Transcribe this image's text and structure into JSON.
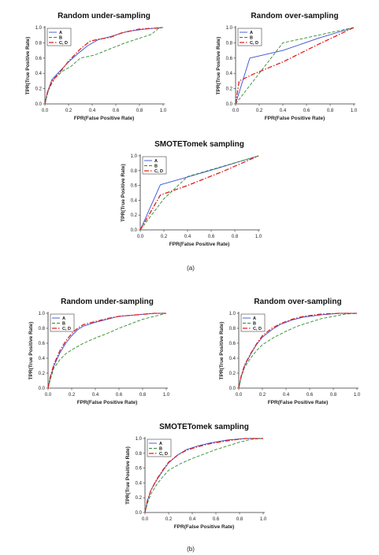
{
  "figure": {
    "panel_labels": [
      "(a)",
      "(b)"
    ]
  },
  "chart_data": [
    {
      "type": "line",
      "panel": "(a)",
      "title": "Random under-sampling",
      "xlabel": "FPR(False Positive Rate)",
      "ylabel": "TPR(True Positive Rate)",
      "xlim": [
        0,
        1
      ],
      "ylim": [
        0,
        1
      ],
      "x_ticks": [
        "0.0",
        "0.2",
        "0.4",
        "0.6",
        "0.8",
        "1.0"
      ],
      "y_ticks": [
        "0.0",
        "0.2",
        "0.4",
        "0.6",
        "0.8",
        "1.0"
      ],
      "grid": false,
      "legend_position": "top-left",
      "series": [
        {
          "name": "A",
          "color": "#3a4fd1",
          "dash": "solid",
          "points": [
            [
              0,
              0
            ],
            [
              0.02,
              0.15
            ],
            [
              0.06,
              0.32
            ],
            [
              0.12,
              0.42
            ],
            [
              0.2,
              0.55
            ],
            [
              0.28,
              0.66
            ],
            [
              0.36,
              0.76
            ],
            [
              0.45,
              0.84
            ],
            [
              0.55,
              0.88
            ],
            [
              0.7,
              0.95
            ],
            [
              0.85,
              0.98
            ],
            [
              1,
              1
            ]
          ]
        },
        {
          "name": "B",
          "color": "#2e8b2e",
          "dash": "dash",
          "points": [
            [
              0,
              0
            ],
            [
              0.03,
              0.18
            ],
            [
              0.08,
              0.33
            ],
            [
              0.15,
              0.43
            ],
            [
              0.22,
              0.49
            ],
            [
              0.3,
              0.6
            ],
            [
              0.42,
              0.64
            ],
            [
              0.55,
              0.72
            ],
            [
              0.68,
              0.8
            ],
            [
              0.8,
              0.86
            ],
            [
              0.9,
              0.91
            ],
            [
              0.97,
              1
            ],
            [
              1,
              1
            ]
          ]
        },
        {
          "name": "C, D",
          "color": "#e01f1f",
          "dash": "dashdot",
          "points": [
            [
              0,
              0
            ],
            [
              0.02,
              0.14
            ],
            [
              0.06,
              0.3
            ],
            [
              0.12,
              0.4
            ],
            [
              0.2,
              0.56
            ],
            [
              0.3,
              0.72
            ],
            [
              0.38,
              0.82
            ],
            [
              0.46,
              0.85
            ],
            [
              0.55,
              0.87
            ],
            [
              0.65,
              0.93
            ],
            [
              0.8,
              0.98
            ],
            [
              1,
              1
            ]
          ]
        }
      ]
    },
    {
      "type": "line",
      "panel": "(a)",
      "title": "Random over-sampling",
      "xlabel": "FPR(False Positive Rate)",
      "ylabel": "TPR(True Positive Rate)",
      "xlim": [
        0,
        1
      ],
      "ylim": [
        0,
        1
      ],
      "x_ticks": [
        "0.0",
        "0.2",
        "0.4",
        "0.6",
        "0.8",
        "1.0"
      ],
      "y_ticks": [
        "0.0",
        "0.2",
        "0.4",
        "0.6",
        "0.8",
        "1.0"
      ],
      "grid": false,
      "legend_position": "top-left",
      "series": [
        {
          "name": "A",
          "color": "#3a4fd1",
          "dash": "solid",
          "points": [
            [
              0,
              0
            ],
            [
              0.12,
              0.6
            ],
            [
              0.4,
              0.7
            ],
            [
              0.7,
              0.86
            ],
            [
              1,
              1
            ]
          ]
        },
        {
          "name": "B",
          "color": "#2e8b2e",
          "dash": "dash",
          "points": [
            [
              0,
              0
            ],
            [
              0.2,
              0.4
            ],
            [
              0.4,
              0.8
            ],
            [
              0.7,
              0.9
            ],
            [
              1,
              1
            ]
          ]
        },
        {
          "name": "C, D",
          "color": "#e01f1f",
          "dash": "dashdot",
          "points": [
            [
              0,
              0
            ],
            [
              0.03,
              0.3
            ],
            [
              0.15,
              0.39
            ],
            [
              0.4,
              0.55
            ],
            [
              0.7,
              0.78
            ],
            [
              1,
              1
            ]
          ]
        }
      ]
    },
    {
      "type": "line",
      "panel": "(a)",
      "title": "SMOTETomek sampling",
      "xlabel": "FPR(False Positive Rate)",
      "ylabel": "TPR(True Positive Rate)",
      "xlim": [
        0,
        1
      ],
      "ylim": [
        0,
        1
      ],
      "x_ticks": [
        "0.0",
        "0.2",
        "0.4",
        "0.6",
        "0.8",
        "1.0"
      ],
      "y_ticks": [
        "0.0",
        "0.2",
        "0.4",
        "0.6",
        "0.8",
        "1.0"
      ],
      "grid": false,
      "legend_position": "top-left",
      "series": [
        {
          "name": "A",
          "color": "#3a4fd1",
          "dash": "solid",
          "points": [
            [
              0,
              0
            ],
            [
              0.17,
              0.61
            ],
            [
              0.37,
              0.7
            ],
            [
              0.65,
              0.83
            ],
            [
              1,
              1
            ]
          ]
        },
        {
          "name": "B",
          "color": "#2e8b2e",
          "dash": "dash",
          "points": [
            [
              0,
              0
            ],
            [
              0.2,
              0.42
            ],
            [
              0.4,
              0.72
            ],
            [
              0.7,
              0.86
            ],
            [
              1,
              1
            ]
          ]
        },
        {
          "name": "C, D",
          "color": "#e01f1f",
          "dash": "dashdot",
          "points": [
            [
              0,
              0
            ],
            [
              0.17,
              0.47
            ],
            [
              0.4,
              0.6
            ],
            [
              0.7,
              0.79
            ],
            [
              1,
              1
            ]
          ]
        }
      ]
    },
    {
      "type": "line",
      "panel": "(b)",
      "title": "Random under-sampling",
      "xlabel": "FPR(False Positive Rate)",
      "ylabel": "TPR(True Positive Rate)",
      "xlim": [
        0,
        1
      ],
      "ylim": [
        0,
        1
      ],
      "x_ticks": [
        "0.0",
        "0.2",
        "0.4",
        "0.6",
        "0.8",
        "1.0"
      ],
      "y_ticks": [
        "0.0",
        "0.2",
        "0.4",
        "0.6",
        "0.8",
        "1.0"
      ],
      "grid": false,
      "legend_position": "top-left",
      "series": [
        {
          "name": "A",
          "color": "#3a4fd1",
          "dash": "solid",
          "points": [
            [
              0,
              0
            ],
            [
              0.02,
              0.15
            ],
            [
              0.05,
              0.3
            ],
            [
              0.1,
              0.47
            ],
            [
              0.15,
              0.6
            ],
            [
              0.2,
              0.7
            ],
            [
              0.25,
              0.78
            ],
            [
              0.3,
              0.83
            ],
            [
              0.4,
              0.88
            ],
            [
              0.5,
              0.92
            ],
            [
              0.6,
              0.96
            ],
            [
              0.75,
              0.98
            ],
            [
              0.9,
              1
            ],
            [
              1,
              1
            ]
          ]
        },
        {
          "name": "B",
          "color": "#2e8b2e",
          "dash": "dash",
          "points": [
            [
              0,
              0
            ],
            [
              0.02,
              0.12
            ],
            [
              0.05,
              0.27
            ],
            [
              0.1,
              0.38
            ],
            [
              0.15,
              0.46
            ],
            [
              0.22,
              0.53
            ],
            [
              0.3,
              0.6
            ],
            [
              0.4,
              0.67
            ],
            [
              0.5,
              0.73
            ],
            [
              0.6,
              0.8
            ],
            [
              0.7,
              0.86
            ],
            [
              0.8,
              0.92
            ],
            [
              0.9,
              0.96
            ],
            [
              1,
              1
            ]
          ]
        },
        {
          "name": "C, D",
          "color": "#e01f1f",
          "dash": "dashdot",
          "points": [
            [
              0,
              0
            ],
            [
              0.02,
              0.16
            ],
            [
              0.05,
              0.32
            ],
            [
              0.1,
              0.5
            ],
            [
              0.15,
              0.63
            ],
            [
              0.2,
              0.73
            ],
            [
              0.25,
              0.8
            ],
            [
              0.3,
              0.85
            ],
            [
              0.4,
              0.89
            ],
            [
              0.5,
              0.93
            ],
            [
              0.6,
              0.96
            ],
            [
              0.75,
              0.98
            ],
            [
              0.9,
              1
            ],
            [
              1,
              1
            ]
          ]
        }
      ]
    },
    {
      "type": "line",
      "panel": "(b)",
      "title": "Random over-sampling",
      "xlabel": "FPR(False Positive Rate)",
      "ylabel": "TPR(True Positive Rate)",
      "xlim": [
        0,
        1
      ],
      "ylim": [
        0,
        1
      ],
      "x_ticks": [
        "0.0",
        "0.2",
        "0.4",
        "0.6",
        "0.8",
        "1.0"
      ],
      "y_ticks": [
        "0.0",
        "0.2",
        "0.4",
        "0.6",
        "0.8",
        "1.0"
      ],
      "grid": false,
      "legend_position": "top-left",
      "series": [
        {
          "name": "A",
          "color": "#3a4fd1",
          "dash": "solid",
          "points": [
            [
              0,
              0
            ],
            [
              0.02,
              0.15
            ],
            [
              0.05,
              0.3
            ],
            [
              0.1,
              0.45
            ],
            [
              0.15,
              0.58
            ],
            [
              0.2,
              0.68
            ],
            [
              0.28,
              0.78
            ],
            [
              0.35,
              0.85
            ],
            [
              0.45,
              0.91
            ],
            [
              0.55,
              0.95
            ],
            [
              0.7,
              0.98
            ],
            [
              0.85,
              1
            ],
            [
              1,
              1
            ]
          ]
        },
        {
          "name": "B",
          "color": "#2e8b2e",
          "dash": "dash",
          "points": [
            [
              0,
              0
            ],
            [
              0.02,
              0.14
            ],
            [
              0.05,
              0.28
            ],
            [
              0.1,
              0.4
            ],
            [
              0.15,
              0.5
            ],
            [
              0.2,
              0.58
            ],
            [
              0.3,
              0.68
            ],
            [
              0.4,
              0.76
            ],
            [
              0.5,
              0.83
            ],
            [
              0.6,
              0.88
            ],
            [
              0.7,
              0.93
            ],
            [
              0.8,
              0.96
            ],
            [
              0.9,
              0.99
            ],
            [
              1,
              1
            ]
          ]
        },
        {
          "name": "C, D",
          "color": "#e01f1f",
          "dash": "dashdot",
          "points": [
            [
              0,
              0
            ],
            [
              0.02,
              0.16
            ],
            [
              0.05,
              0.31
            ],
            [
              0.1,
              0.46
            ],
            [
              0.15,
              0.59
            ],
            [
              0.2,
              0.7
            ],
            [
              0.28,
              0.8
            ],
            [
              0.35,
              0.86
            ],
            [
              0.45,
              0.92
            ],
            [
              0.55,
              0.96
            ],
            [
              0.7,
              0.99
            ],
            [
              0.85,
              1
            ],
            [
              1,
              1
            ]
          ]
        }
      ]
    },
    {
      "type": "line",
      "panel": "(b)",
      "title": "SMOTETomek sampling",
      "xlabel": "FPR(False Positive Rate)",
      "ylabel": "TPR(True Positive Rate)",
      "xlim": [
        0,
        1
      ],
      "ylim": [
        0,
        1
      ],
      "x_ticks": [
        "0.0",
        "0.2",
        "0.4",
        "0.6",
        "0.8",
        "1.0"
      ],
      "y_ticks": [
        "0.0",
        "0.2",
        "0.4",
        "0.6",
        "0.8",
        "1.0"
      ],
      "grid": false,
      "legend_position": "top-left",
      "series": [
        {
          "name": "A",
          "color": "#3a4fd1",
          "dash": "solid",
          "points": [
            [
              0,
              0
            ],
            [
              0.02,
              0.15
            ],
            [
              0.05,
              0.3
            ],
            [
              0.1,
              0.44
            ],
            [
              0.15,
              0.56
            ],
            [
              0.2,
              0.67
            ],
            [
              0.28,
              0.78
            ],
            [
              0.35,
              0.85
            ],
            [
              0.45,
              0.9
            ],
            [
              0.55,
              0.94
            ],
            [
              0.7,
              0.98
            ],
            [
              0.85,
              1
            ],
            [
              1,
              1
            ]
          ]
        },
        {
          "name": "B",
          "color": "#2e8b2e",
          "dash": "dash",
          "points": [
            [
              0,
              0
            ],
            [
              0.02,
              0.12
            ],
            [
              0.05,
              0.25
            ],
            [
              0.1,
              0.38
            ],
            [
              0.15,
              0.48
            ],
            [
              0.2,
              0.57
            ],
            [
              0.3,
              0.66
            ],
            [
              0.4,
              0.73
            ],
            [
              0.5,
              0.79
            ],
            [
              0.6,
              0.85
            ],
            [
              0.7,
              0.9
            ],
            [
              0.8,
              0.95
            ],
            [
              0.9,
              0.99
            ],
            [
              1,
              1
            ]
          ]
        },
        {
          "name": "C, D",
          "color": "#e01f1f",
          "dash": "dashdot",
          "points": [
            [
              0,
              0
            ],
            [
              0.02,
              0.16
            ],
            [
              0.05,
              0.3
            ],
            [
              0.1,
              0.45
            ],
            [
              0.15,
              0.57
            ],
            [
              0.2,
              0.68
            ],
            [
              0.28,
              0.78
            ],
            [
              0.35,
              0.84
            ],
            [
              0.45,
              0.89
            ],
            [
              0.55,
              0.93
            ],
            [
              0.7,
              0.97
            ],
            [
              0.85,
              1
            ],
            [
              1,
              1
            ]
          ]
        }
      ]
    }
  ]
}
